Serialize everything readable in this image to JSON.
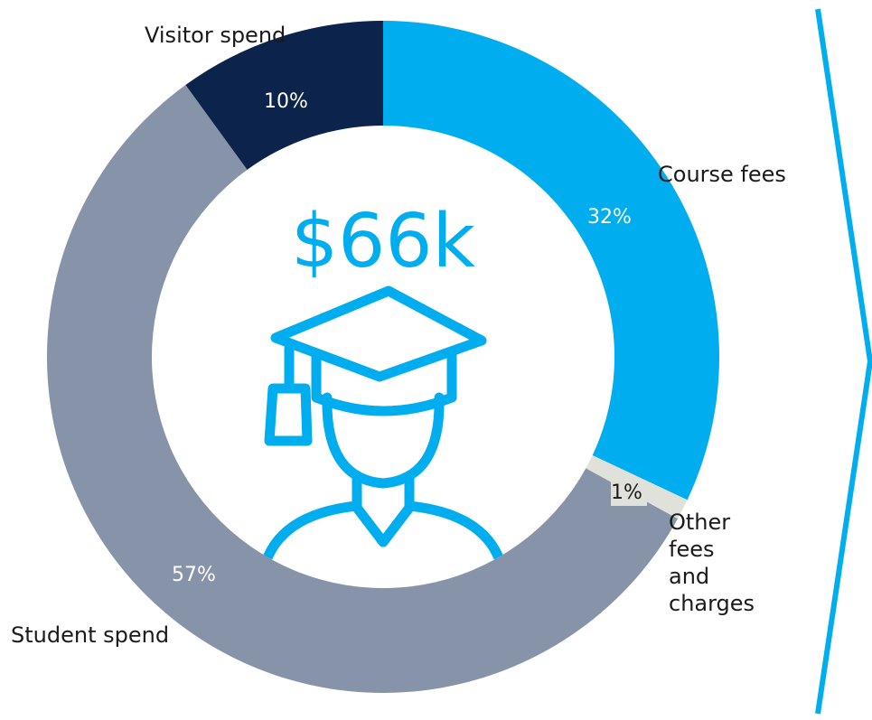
{
  "chart_data": {
    "type": "donut",
    "center_label": "$66k",
    "categories": [
      "Course fees",
      "Other fees and charges",
      "Student spend",
      "Visitor spend"
    ],
    "values": [
      32,
      1,
      57,
      10
    ],
    "value_labels": [
      "32%",
      "1%",
      "57%",
      "10%"
    ],
    "colors": [
      "#00aeef",
      "#e1e1dc",
      "#8793a8",
      "#0c234b"
    ]
  }
}
